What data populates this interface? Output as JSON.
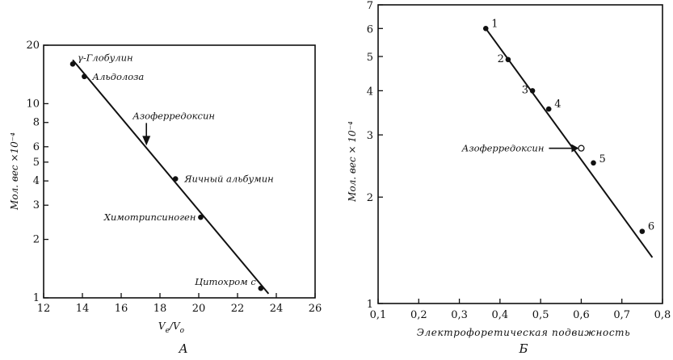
{
  "chart_data": [
    {
      "type": "scatter",
      "panel_label": "А",
      "xlabel_main": "V",
      "xlabel_sub1": "e",
      "xlabel_slash": "/V",
      "xlabel_sub2": "o",
      "ylabel": "Мол. вес ×10⁻⁴",
      "xlim": [
        12,
        26
      ],
      "ylim": [
        1,
        20
      ],
      "yscale": "log",
      "xticks": [
        "12",
        "14",
        "16",
        "18",
        "20",
        "22",
        "24",
        "26"
      ],
      "yticks": [
        {
          "v": 1,
          "label": "1"
        },
        {
          "v": 2,
          "label": "2"
        },
        {
          "v": 3,
          "label": "3"
        },
        {
          "v": 4,
          "label": "4"
        },
        {
          "v": 5,
          "label": "5"
        },
        {
          "v": 6,
          "label": "6"
        },
        {
          "v": 8,
          "label": "8"
        },
        {
          "v": 10,
          "label": "10"
        },
        {
          "v": 20,
          "label": "20"
        }
      ],
      "points": [
        {
          "x": 13.5,
          "y": 16.0,
          "label": "γ-Глобулин"
        },
        {
          "x": 14.1,
          "y": 13.8,
          "label": "Альдолоза"
        },
        {
          "x": 18.8,
          "y": 4.1,
          "label": "Яичный альбумин"
        },
        {
          "x": 20.1,
          "y": 2.6,
          "label": "Химотрипсиноген"
        },
        {
          "x": 23.2,
          "y": 1.12,
          "label": "Цитохром с"
        }
      ],
      "fit_line": [
        {
          "x": 13.5,
          "y": 16.8
        },
        {
          "x": 23.6,
          "y": 1.05
        }
      ],
      "marker": {
        "x": 17.3,
        "y": 6.2,
        "label": "Азоферредоксин"
      }
    },
    {
      "type": "scatter",
      "panel_label": "Б",
      "xlabel": "Электрофоретическая подвижность",
      "ylabel": "Мол. вес × 10⁻⁴",
      "xlim": [
        0.1,
        0.8
      ],
      "ylim": [
        1,
        7
      ],
      "yscale": "log",
      "xticks": [
        "0,1",
        "0,2",
        "0,3",
        "0,4",
        "0,5",
        "0,6",
        "0,7",
        "0,8"
      ],
      "yticks": [
        {
          "v": 1,
          "label": "1"
        },
        {
          "v": 2,
          "label": "2"
        },
        {
          "v": 3,
          "label": "3"
        },
        {
          "v": 4,
          "label": "4"
        },
        {
          "v": 5,
          "label": "5"
        },
        {
          "v": 6,
          "label": "6"
        },
        {
          "v": 7,
          "label": "7"
        }
      ],
      "points": [
        {
          "x": 0.365,
          "y": 6.0,
          "label": "1"
        },
        {
          "x": 0.42,
          "y": 4.9,
          "label": "2"
        },
        {
          "x": 0.48,
          "y": 4.0,
          "label": "3"
        },
        {
          "x": 0.52,
          "y": 3.55,
          "label": "4"
        },
        {
          "x": 0.63,
          "y": 2.5,
          "label": "5"
        },
        {
          "x": 0.75,
          "y": 1.6,
          "label": "6"
        }
      ],
      "fit_line": [
        {
          "x": 0.365,
          "y": 6.0
        },
        {
          "x": 0.775,
          "y": 1.35
        }
      ],
      "marker": {
        "x": 0.6,
        "y": 2.75,
        "label": "Азоферредоксин"
      }
    }
  ]
}
